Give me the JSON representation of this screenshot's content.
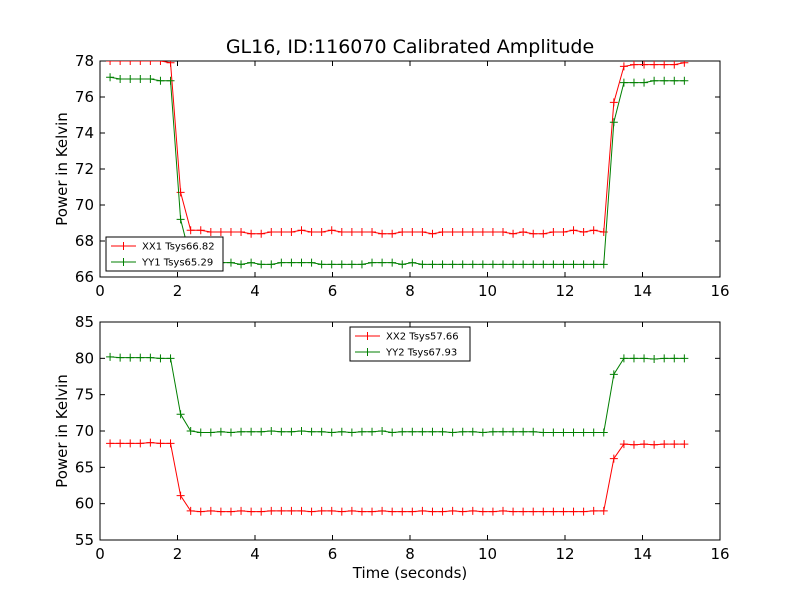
{
  "chart_data": [
    {
      "type": "line",
      "title": "GL16, ID:116070 Calibrated Amplitude",
      "xlabel": "",
      "ylabel": "Power in Kelvin",
      "xlim": [
        0,
        16
      ],
      "ylim": [
        66,
        78
      ],
      "xticks": [
        0,
        2,
        4,
        6,
        8,
        10,
        12,
        14,
        16
      ],
      "yticks": [
        66,
        68,
        70,
        72,
        74,
        76,
        78
      ],
      "grid": false,
      "legend": "lower-left",
      "x": [
        0.26,
        0.52,
        0.78,
        1.04,
        1.3,
        1.56,
        1.82,
        2.08,
        2.34,
        2.6,
        2.86,
        3.12,
        3.38,
        3.64,
        3.9,
        4.16,
        4.42,
        4.68,
        4.94,
        5.2,
        5.46,
        5.72,
        5.98,
        6.24,
        6.5,
        6.76,
        7.02,
        7.28,
        7.54,
        7.8,
        8.06,
        8.32,
        8.58,
        8.84,
        9.1,
        9.36,
        9.62,
        9.88,
        10.14,
        10.4,
        10.66,
        10.92,
        11.18,
        11.44,
        11.7,
        11.96,
        12.22,
        12.48,
        12.74,
        13.0,
        13.26,
        13.52,
        13.78,
        14.04,
        14.3,
        14.56,
        14.82,
        15.08
      ],
      "series": [
        {
          "name": "XX1 Tsys66.82",
          "color": "#ff0000",
          "values": [
            78.0,
            78.0,
            78.0,
            78.0,
            78.0,
            78.0,
            77.9,
            70.7,
            68.6,
            68.6,
            68.5,
            68.5,
            68.5,
            68.5,
            68.4,
            68.4,
            68.5,
            68.5,
            68.5,
            68.6,
            68.5,
            68.5,
            68.6,
            68.5,
            68.5,
            68.5,
            68.5,
            68.4,
            68.4,
            68.5,
            68.5,
            68.5,
            68.4,
            68.5,
            68.5,
            68.5,
            68.5,
            68.5,
            68.5,
            68.5,
            68.4,
            68.5,
            68.4,
            68.4,
            68.5,
            68.5,
            68.6,
            68.5,
            68.6,
            68.5,
            75.7,
            77.7,
            77.8,
            77.8,
            77.8,
            77.8,
            77.8,
            77.9
          ]
        },
        {
          "name": "YY1 Tsys65.29",
          "color": "#007f00",
          "values": [
            77.1,
            77.0,
            77.0,
            77.0,
            77.0,
            76.9,
            76.9,
            69.2,
            67.0,
            66.8,
            66.8,
            66.8,
            66.8,
            66.7,
            66.8,
            66.7,
            66.7,
            66.8,
            66.8,
            66.8,
            66.8,
            66.7,
            66.7,
            66.7,
            66.7,
            66.7,
            66.8,
            66.8,
            66.8,
            66.7,
            66.8,
            66.7,
            66.7,
            66.7,
            66.7,
            66.7,
            66.7,
            66.7,
            66.7,
            66.7,
            66.7,
            66.7,
            66.7,
            66.7,
            66.7,
            66.7,
            66.7,
            66.7,
            66.7,
            66.7,
            74.6,
            76.8,
            76.8,
            76.8,
            76.9,
            76.9,
            76.9,
            76.9
          ]
        }
      ]
    },
    {
      "type": "line",
      "title": "",
      "xlabel": "Time (seconds)",
      "ylabel": "Power in Kelvin",
      "xlim": [
        0,
        16
      ],
      "ylim": [
        55,
        85
      ],
      "xticks": [
        0,
        2,
        4,
        6,
        8,
        10,
        12,
        14,
        16
      ],
      "yticks": [
        55,
        60,
        65,
        70,
        75,
        80,
        85
      ],
      "grid": false,
      "legend": "top-center",
      "x": [
        0.26,
        0.52,
        0.78,
        1.04,
        1.3,
        1.56,
        1.82,
        2.08,
        2.34,
        2.6,
        2.86,
        3.12,
        3.38,
        3.64,
        3.9,
        4.16,
        4.42,
        4.68,
        4.94,
        5.2,
        5.46,
        5.72,
        5.98,
        6.24,
        6.5,
        6.76,
        7.02,
        7.28,
        7.54,
        7.8,
        8.06,
        8.32,
        8.58,
        8.84,
        9.1,
        9.36,
        9.62,
        9.88,
        10.14,
        10.4,
        10.66,
        10.92,
        11.18,
        11.44,
        11.7,
        11.96,
        12.22,
        12.48,
        12.74,
        13.0,
        13.26,
        13.52,
        13.78,
        14.04,
        14.3,
        14.56,
        14.82,
        15.08
      ],
      "series": [
        {
          "name": "XX2 Tsys57.66",
          "color": "#ff0000",
          "values": [
            68.3,
            68.3,
            68.3,
            68.3,
            68.4,
            68.3,
            68.3,
            61.1,
            59.0,
            58.9,
            59.0,
            58.9,
            58.9,
            59.0,
            58.9,
            58.9,
            59.0,
            59.0,
            59.0,
            59.0,
            58.9,
            59.0,
            59.0,
            58.9,
            59.0,
            58.9,
            58.9,
            59.0,
            58.9,
            58.9,
            58.9,
            59.0,
            58.9,
            58.9,
            59.0,
            58.9,
            59.0,
            58.9,
            58.9,
            59.0,
            58.9,
            58.9,
            58.9,
            58.9,
            58.9,
            58.9,
            58.9,
            58.9,
            59.0,
            59.0,
            66.2,
            68.2,
            68.1,
            68.2,
            68.1,
            68.2,
            68.2,
            68.2
          ]
        },
        {
          "name": "YY2 Tsys67.93",
          "color": "#007f00",
          "values": [
            80.2,
            80.1,
            80.1,
            80.1,
            80.1,
            80.0,
            80.0,
            72.3,
            70.0,
            69.8,
            69.8,
            69.9,
            69.8,
            69.9,
            69.9,
            69.9,
            70.0,
            69.9,
            69.9,
            70.0,
            69.9,
            69.9,
            69.8,
            69.9,
            69.8,
            69.9,
            69.9,
            70.0,
            69.8,
            69.9,
            69.9,
            69.9,
            69.9,
            69.9,
            69.8,
            69.9,
            69.9,
            69.8,
            69.9,
            69.9,
            69.9,
            69.9,
            69.9,
            69.8,
            69.8,
            69.8,
            69.8,
            69.8,
            69.8,
            69.8,
            77.8,
            80.0,
            80.0,
            80.0,
            79.9,
            80.0,
            80.0,
            80.0
          ]
        }
      ]
    }
  ]
}
